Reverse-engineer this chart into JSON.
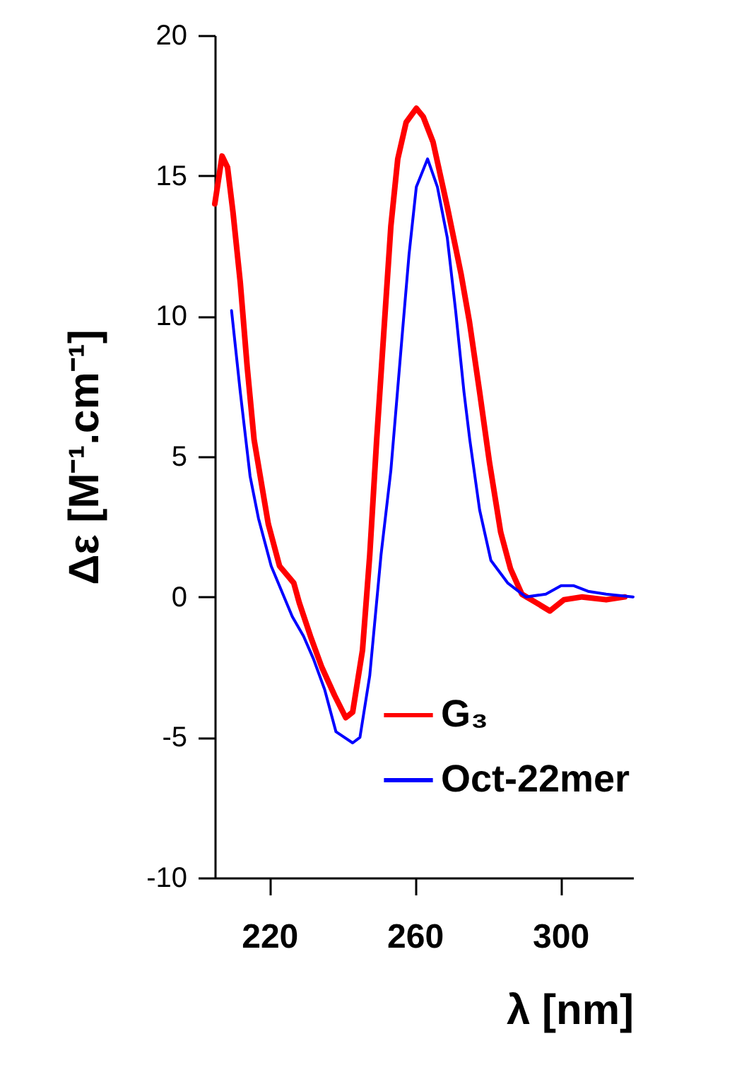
{
  "chart_data": {
    "type": "line",
    "xlabel": "λ [nm]",
    "ylabel": "Δε [M⁻¹.cm⁻¹]",
    "xlim": [
      205,
      320
    ],
    "xticks": [
      220,
      260,
      300
    ],
    "ylim": [
      -10,
      20
    ],
    "yticks": [
      -10,
      -5,
      0,
      5,
      10,
      15,
      20
    ],
    "grid": false,
    "legend": "bottom right",
    "marker": "none",
    "line_style": "solid",
    "series": [
      {
        "name": "G₃",
        "color": "#ff0000",
        "x": [
          205,
          207,
          208.5,
          210,
          212,
          213.9,
          215.8,
          219.7,
          222.8,
          226.7,
          228.2,
          231.3,
          234.4,
          237.9,
          241,
          242.9,
          245.6,
          247.6,
          249.5,
          251.5,
          253.4,
          255.3,
          257.6,
          260.4,
          262.3,
          265,
          268.9,
          272.7,
          275,
          277.8,
          280.5,
          283.6,
          286.3,
          289.4,
          293.3,
          297.1,
          301,
          306,
          312.6,
          317.7
        ],
        "values": [
          14.0,
          15.7,
          15.3,
          13.7,
          11.2,
          8.2,
          5.6,
          2.6,
          1.1,
          0.5,
          -0.2,
          -1.4,
          -2.5,
          -3.5,
          -4.3,
          -4.1,
          -1.9,
          1.5,
          5.6,
          9.5,
          13.2,
          15.6,
          16.9,
          17.4,
          17.1,
          16.2,
          13.9,
          11.5,
          9.8,
          7.3,
          4.8,
          2.3,
          1.0,
          0.1,
          -0.2,
          -0.5,
          -0.1,
          0.0,
          -0.1,
          0.0
        ]
      },
      {
        "name": "Oct-22mer",
        "color": "#0000ff",
        "x": [
          209.6,
          212,
          214.7,
          217,
          220.5,
          226.3,
          229.4,
          232.1,
          235.2,
          238.3,
          242.9,
          244.9,
          247.6,
          250.7,
          253.4,
          256.5,
          258.4,
          260.4,
          263.5,
          266.2,
          268.9,
          271.2,
          273.5,
          275.1,
          277.8,
          280.9,
          285.5,
          290.5,
          296,
          300.2,
          303.7,
          307.6,
          312.6,
          320
        ],
        "values": [
          10.2,
          7.3,
          4.3,
          2.8,
          1.1,
          -0.7,
          -1.4,
          -2.2,
          -3.3,
          -4.8,
          -5.2,
          -5.0,
          -2.8,
          1.5,
          4.5,
          9.3,
          12.2,
          14.6,
          15.6,
          14.6,
          12.8,
          10.2,
          7.3,
          5.6,
          3.1,
          1.3,
          0.5,
          0.0,
          0.1,
          0.4,
          0.4,
          0.2,
          0.1,
          0.0
        ]
      }
    ]
  }
}
